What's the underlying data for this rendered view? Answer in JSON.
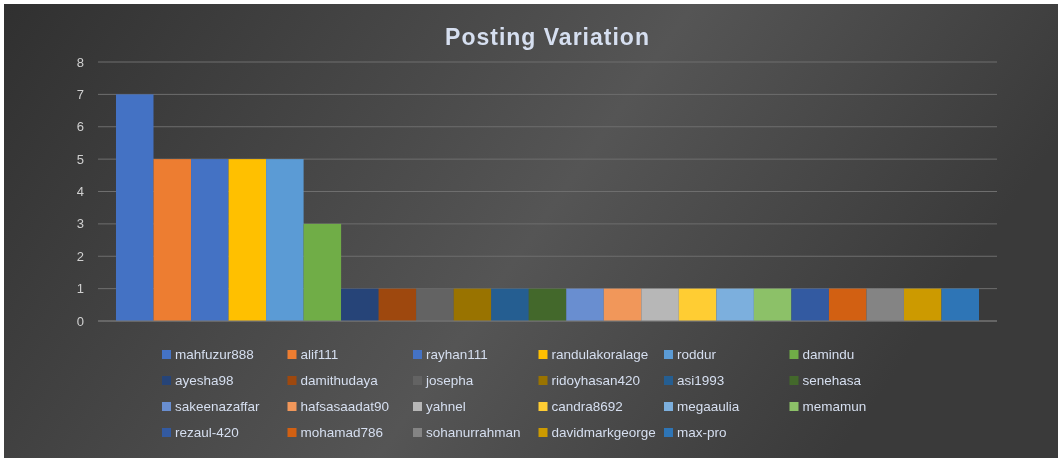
{
  "chart_data": {
    "type": "bar",
    "title": "Posting Variation",
    "categories": [
      null
    ],
    "ylim": [
      0,
      8
    ],
    "yticks": [
      0,
      1,
      2,
      3,
      4,
      5,
      6,
      7,
      8
    ],
    "grid": "y",
    "legend": "bottom",
    "series": [
      {
        "name": "mahfuzur888",
        "color": "#4472c4",
        "values": [
          7
        ]
      },
      {
        "name": "alif111",
        "color": "#ed7d31",
        "values": [
          5
        ]
      },
      {
        "name": "rayhan111",
        "color": "#4472c4",
        "values": [
          5
        ]
      },
      {
        "name": "randulakoralage",
        "color": "#ffc000",
        "values": [
          5
        ]
      },
      {
        "name": "roddur",
        "color": "#5b9bd5",
        "values": [
          5
        ]
      },
      {
        "name": "damindu",
        "color": "#70ad47",
        "values": [
          3
        ]
      },
      {
        "name": "ayesha98",
        "color": "#264478",
        "values": [
          1
        ]
      },
      {
        "name": "damithudaya",
        "color": "#9e480e",
        "values": [
          1
        ]
      },
      {
        "name": "josepha",
        "color": "#636363",
        "values": [
          1
        ]
      },
      {
        "name": "ridoyhasan420",
        "color": "#997300",
        "values": [
          1
        ]
      },
      {
        "name": "asi1993",
        "color": "#255e91",
        "values": [
          1
        ]
      },
      {
        "name": "senehasa",
        "color": "#43682b",
        "values": [
          1
        ]
      },
      {
        "name": "sakeenazaffar",
        "color": "#698ed0",
        "values": [
          1
        ]
      },
      {
        "name": "hafsasaadat90",
        "color": "#f1975a",
        "values": [
          1
        ]
      },
      {
        "name": "yahnel",
        "color": "#b7b7b7",
        "values": [
          1
        ]
      },
      {
        "name": "candra8692",
        "color": "#ffcd33",
        "values": [
          1
        ]
      },
      {
        "name": "megaaulia",
        "color": "#7cafdd",
        "values": [
          1
        ]
      },
      {
        "name": "memamun",
        "color": "#8cc168",
        "values": [
          1
        ]
      },
      {
        "name": "rezaul-420",
        "color": "#335aa1",
        "values": [
          1
        ]
      },
      {
        "name": "mohamad786",
        "color": "#d26012",
        "values": [
          1
        ]
      },
      {
        "name": "sohanurrahman",
        "color": "#848484",
        "values": [
          1
        ]
      },
      {
        "name": "davidmarkgeorge",
        "color": "#cc9a00",
        "values": [
          1
        ]
      },
      {
        "name": "max-pro",
        "color": "#2e75b6",
        "values": [
          1
        ]
      }
    ]
  }
}
